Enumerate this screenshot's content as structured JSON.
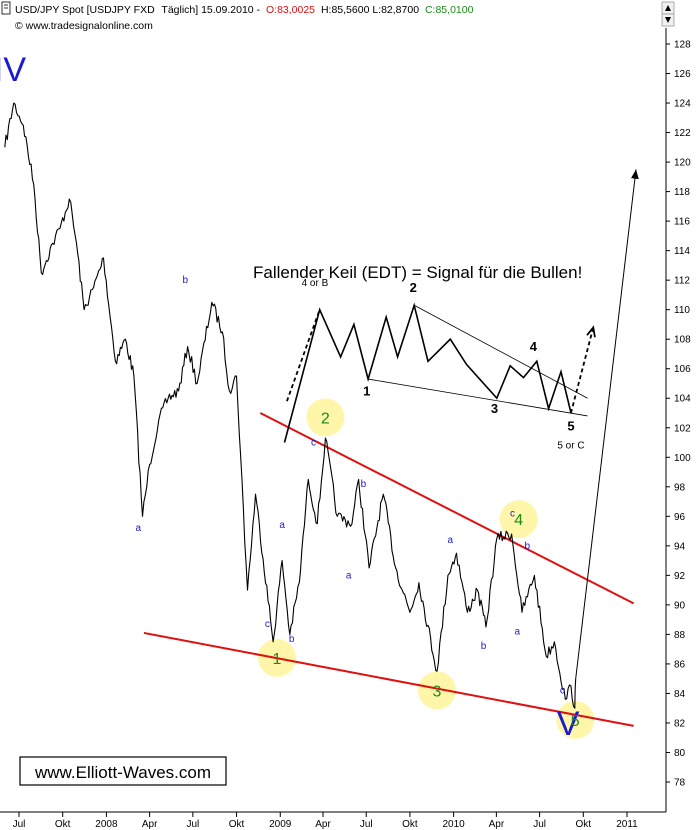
{
  "header": {
    "symbol": "USD/JPY Spot [USDJPY FXD",
    "period": "Täglich] 15.09.2010 -",
    "open": "O:83,0025",
    "high_low": "H:85,5600 L:82,8700",
    "close": "C:85,0100",
    "source": "© www.tradesignalonline.com"
  },
  "watermark": "www.Elliott-Waves.com",
  "colors": {
    "price": "#000000",
    "wedge_lines": "#e01010",
    "wave_green": "#1a8c1a",
    "wave_blue": "#1a1ad0",
    "highlight": "#fff59a"
  },
  "chart_data": {
    "type": "line",
    "title": "",
    "annotation_title": "Fallender Keil (EDT) = Signal für die Bullen!",
    "ylim": [
      77,
      129
    ],
    "y_ticks": [
      78,
      80,
      82,
      84,
      86,
      88,
      90,
      92,
      94,
      96,
      98,
      100,
      102,
      104,
      106,
      108,
      110,
      112,
      114,
      116,
      118,
      120,
      122,
      124,
      126,
      128
    ],
    "x_ticks": [
      {
        "label": "Jul",
        "date": "2007-07"
      },
      {
        "label": "Okt",
        "date": "2007-10"
      },
      {
        "label": "2008",
        "date": "2008-01"
      },
      {
        "label": "Apr",
        "date": "2008-04"
      },
      {
        "label": "Jul",
        "date": "2008-07"
      },
      {
        "label": "Okt",
        "date": "2008-10"
      },
      {
        "label": "2009",
        "date": "2009-01"
      },
      {
        "label": "Apr",
        "date": "2009-04"
      },
      {
        "label": "Jul",
        "date": "2009-07"
      },
      {
        "label": "Okt",
        "date": "2009-10"
      },
      {
        "label": "2010",
        "date": "2010-01"
      },
      {
        "label": "Apr",
        "date": "2010-04"
      },
      {
        "label": "Jul",
        "date": "2010-07"
      },
      {
        "label": "Okt",
        "date": "2010-10"
      },
      {
        "label": "2011",
        "date": "2011-01"
      }
    ],
    "series": [
      {
        "values": [
          [
            "2007-06-01",
            121.0
          ],
          [
            "2007-06-20",
            124.0
          ],
          [
            "2007-07-10",
            122.5
          ],
          [
            "2007-08-01",
            118.5
          ],
          [
            "2007-08-17",
            112.5
          ],
          [
            "2007-09-10",
            114.5
          ],
          [
            "2007-09-25",
            115.5
          ],
          [
            "2007-10-15",
            117.5
          ],
          [
            "2007-10-30",
            114.5
          ],
          [
            "2007-11-15",
            110.0
          ],
          [
            "2007-12-05",
            111.5
          ],
          [
            "2007-12-26",
            113.5
          ],
          [
            "2008-01-20",
            106.5
          ],
          [
            "2008-02-10",
            108.0
          ],
          [
            "2008-02-28",
            105.5
          ],
          [
            "2008-03-17",
            96.0
          ],
          [
            "2008-04-01",
            99.5
          ],
          [
            "2008-04-20",
            102.5
          ],
          [
            "2008-05-10",
            104.0
          ],
          [
            "2008-06-01",
            104.5
          ],
          [
            "2008-06-20",
            107.5
          ],
          [
            "2008-07-10",
            105.0
          ],
          [
            "2008-08-10",
            110.5
          ],
          [
            "2008-09-01",
            108.5
          ],
          [
            "2008-09-16",
            104.5
          ],
          [
            "2008-10-01",
            105.5
          ],
          [
            "2008-10-24",
            91.0
          ],
          [
            "2008-11-10",
            97.5
          ],
          [
            "2008-12-17",
            87.5
          ],
          [
            "2009-01-05",
            93.0
          ],
          [
            "2009-01-21",
            88.0
          ],
          [
            "2009-02-10",
            91.5
          ],
          [
            "2009-03-01",
            98.5
          ],
          [
            "2009-03-20",
            95.5
          ],
          [
            "2009-04-06",
            101.3
          ],
          [
            "2009-05-01",
            96.0
          ],
          [
            "2009-06-01",
            95.5
          ],
          [
            "2009-06-15",
            98.5
          ],
          [
            "2009-07-07",
            92.5
          ],
          [
            "2009-08-06",
            97.5
          ],
          [
            "2009-09-01",
            92.5
          ],
          [
            "2009-10-01",
            89.5
          ],
          [
            "2009-10-20",
            91.5
          ],
          [
            "2009-11-27",
            85.5
          ],
          [
            "2009-12-20",
            92.0
          ],
          [
            "2010-01-07",
            93.5
          ],
          [
            "2010-01-30",
            89.5
          ],
          [
            "2010-02-20",
            91.0
          ],
          [
            "2010-03-10",
            88.5
          ],
          [
            "2010-04-02",
            94.5
          ],
          [
            "2010-05-03",
            94.8
          ],
          [
            "2010-05-25",
            89.5
          ],
          [
            "2010-06-20",
            92.0
          ],
          [
            "2010-07-15",
            86.5
          ],
          [
            "2010-08-01",
            87.5
          ],
          [
            "2010-08-24",
            83.6
          ],
          [
            "2010-09-05",
            84.5
          ],
          [
            "2010-09-13",
            83.0
          ],
          [
            "2010-09-15",
            85.0
          ]
        ]
      }
    ],
    "wedge_lines": [
      {
        "from": [
          "2008-11-20",
          103.0
        ],
        "to": [
          "2011-01-15",
          90.1
        ]
      },
      {
        "from": [
          "2008-03-20",
          88.1
        ],
        "to": [
          "2011-01-15",
          81.8
        ]
      }
    ],
    "projection_arrow": {
      "from": [
        "2010-09-15",
        85.0
      ],
      "to": [
        "2011-01-20",
        119.5
      ]
    },
    "wave_labels": [
      {
        "text": "IV",
        "date": "2007-06-12",
        "y": 125.5,
        "style": "roman",
        "color": "blue"
      },
      {
        "text": "V",
        "date": "2010-08-30",
        "y": 81.2,
        "style": "roman",
        "color": "blue"
      },
      {
        "text": "1",
        "date": "2008-12-25",
        "y": 86.0,
        "style": "impulse",
        "color": "green",
        "circled": true
      },
      {
        "text": "2",
        "date": "2009-04-06",
        "y": 102.3,
        "style": "impulse",
        "color": "green",
        "circled": true
      },
      {
        "text": "3",
        "date": "2009-11-27",
        "y": 83.8,
        "style": "impulse",
        "color": "green",
        "circled": true
      },
      {
        "text": "4",
        "date": "2010-05-18",
        "y": 95.4,
        "style": "impulse",
        "color": "green",
        "circled": true
      },
      {
        "text": "5",
        "date": "2010-09-14",
        "y": 81.8,
        "style": "impulse",
        "color": "green",
        "circled": true
      },
      {
        "text": "b",
        "date": "2008-06-15",
        "y": 111.8,
        "style": "minor"
      },
      {
        "text": "a",
        "date": "2008-03-08",
        "y": 95.0,
        "style": "minor"
      },
      {
        "text": "a",
        "date": "2009-01-05",
        "y": 95.2,
        "style": "minor"
      },
      {
        "text": "c",
        "date": "2008-12-05",
        "y": 88.5,
        "style": "minor"
      },
      {
        "text": "b",
        "date": "2009-01-25",
        "y": 87.5,
        "style": "minor"
      },
      {
        "text": "c",
        "date": "2009-03-12",
        "y": 100.8,
        "style": "minor"
      },
      {
        "text": "b",
        "date": "2009-06-25",
        "y": 98.0,
        "style": "minor"
      },
      {
        "text": "a",
        "date": "2009-05-25",
        "y": 91.8,
        "style": "minor"
      },
      {
        "text": "a",
        "date": "2009-12-25",
        "y": 94.2,
        "style": "minor"
      },
      {
        "text": "b",
        "date": "2010-03-05",
        "y": 87.0,
        "style": "minor"
      },
      {
        "text": "c",
        "date": "2010-05-05",
        "y": 96.0,
        "style": "minor"
      },
      {
        "text": "b",
        "date": "2010-06-05",
        "y": 93.8,
        "style": "minor"
      },
      {
        "text": "a",
        "date": "2010-05-15",
        "y": 88.0,
        "style": "minor"
      },
      {
        "text": "c",
        "date": "2010-08-18",
        "y": 84.0,
        "style": "minor"
      }
    ],
    "edt_inset": {
      "path": [
        [
          "2009-01-10",
          101.0
        ],
        [
          "2009-03-25",
          110.0
        ],
        [
          "2009-05-08",
          106.8
        ],
        [
          "2009-06-05",
          109.0
        ],
        [
          "2009-07-05",
          105.3
        ],
        [
          "2009-08-12",
          109.5
        ],
        [
          "2009-09-05",
          106.8
        ],
        [
          "2009-10-10",
          110.3
        ],
        [
          "2009-11-08",
          106.5
        ],
        [
          "2009-12-25",
          108.0
        ],
        [
          "2010-01-28",
          106.3
        ],
        [
          "2010-04-02",
          104.0
        ],
        [
          "2010-04-30",
          106.2
        ],
        [
          "2010-05-28",
          105.4
        ],
        [
          "2010-06-25",
          106.5
        ],
        [
          "2010-07-20",
          103.3
        ],
        [
          "2010-08-15",
          105.8
        ],
        [
          "2010-09-05",
          103.0
        ]
      ],
      "dashed_in": [
        [
          "2009-01-15",
          103.8
        ],
        [
          "2009-03-25",
          110.0
        ]
      ],
      "dashed_out": [
        [
          "2010-09-05",
          103.0
        ],
        [
          "2010-10-22",
          108.8
        ]
      ],
      "upper_line": [
        [
          "2009-10-10",
          110.3
        ],
        [
          "2010-10-10",
          104.0
        ]
      ],
      "lower_line": [
        [
          "2009-07-05",
          105.3
        ],
        [
          "2010-10-10",
          102.8
        ]
      ],
      "labels": [
        {
          "text": "4 or B",
          "date": "2009-03-15",
          "y": 111.6
        },
        {
          "text": "2",
          "date": "2009-10-08",
          "y": 111.2
        },
        {
          "text": "1",
          "date": "2009-07-02",
          "y": 104.2
        },
        {
          "text": "3",
          "date": "2010-03-28",
          "y": 103.0
        },
        {
          "text": "4",
          "date": "2010-06-18",
          "y": 107.2
        },
        {
          "text": "5",
          "date": "2010-09-05",
          "y": 101.8
        },
        {
          "text": "5 or C",
          "date": "2010-09-05",
          "y": 100.6
        }
      ]
    }
  }
}
